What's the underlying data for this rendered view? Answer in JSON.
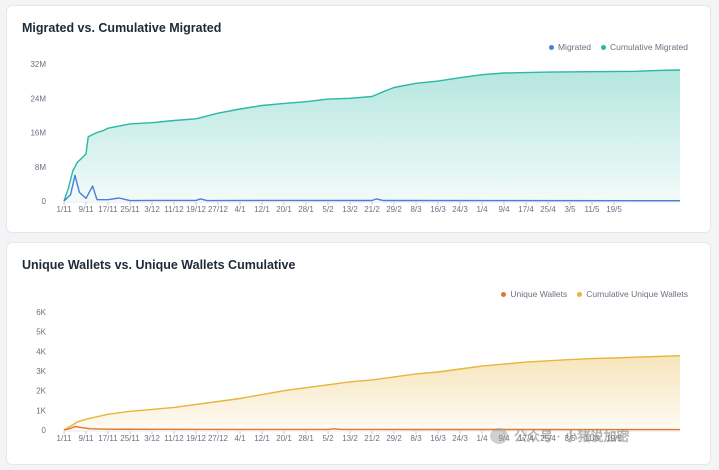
{
  "colors": {
    "migrated": "#4a7fd8",
    "cumulative_migrated": "#2bb8a4",
    "unique_wallets": "#e0772c",
    "cumulative_unique": "#e7b53c"
  },
  "watermark": {
    "icon": "wechat-icon",
    "text": "公众号 · 小猪说加密"
  },
  "chart_data": [
    {
      "type": "area",
      "title": "Migrated vs. Cumulative Migrated",
      "xlabel": "",
      "ylabel": "",
      "ylim": [
        0,
        32000000
      ],
      "legend_position": "top-right",
      "grid": false,
      "yticks": [
        {
          "value": 0,
          "label": "0"
        },
        {
          "value": 8000000,
          "label": "8M"
        },
        {
          "value": 16000000,
          "label": "16M"
        },
        {
          "value": 24000000,
          "label": "24M"
        },
        {
          "value": 32000000,
          "label": "32M"
        }
      ],
      "categories": [
        "1/11",
        "9/11",
        "17/11",
        "25/11",
        "3/12",
        "11/12",
        "19/12",
        "27/12",
        "4/1",
        "12/1",
        "20/1",
        "28/1",
        "5/2",
        "13/2",
        "21/2",
        "29/2",
        "8/3",
        "16/3",
        "24/3",
        "1/4",
        "9/4",
        "17/4",
        "25/4",
        "3/5",
        "11/5",
        "19/5"
      ],
      "x_max": 28,
      "series": [
        {
          "name": "Migrated",
          "color_key": "migrated",
          "fill": false,
          "points": [
            [
              0,
              0
            ],
            [
              0.3,
              1500000
            ],
            [
              0.5,
              6000000
            ],
            [
              0.7,
              2000000
            ],
            [
              1,
              600000
            ],
            [
              1.3,
              3500000
            ],
            [
              1.5,
              300000
            ],
            [
              2,
              300000
            ],
            [
              2.5,
              700000
            ],
            [
              3,
              100000
            ],
            [
              4,
              150000
            ],
            [
              6,
              150000
            ],
            [
              6.2,
              500000
            ],
            [
              6.5,
              100000
            ],
            [
              10,
              150000
            ],
            [
              14,
              120000
            ],
            [
              14.2,
              500000
            ],
            [
              14.5,
              120000
            ],
            [
              20,
              100000
            ],
            [
              28,
              80000
            ]
          ]
        },
        {
          "name": "Cumulative Migrated",
          "color_key": "cumulative_migrated",
          "fill": true,
          "points": [
            [
              0,
              0
            ],
            [
              0.2,
              3000000
            ],
            [
              0.4,
              7000000
            ],
            [
              0.6,
              9000000
            ],
            [
              0.8,
              10000000
            ],
            [
              1,
              11000000
            ],
            [
              1.1,
              15000000
            ],
            [
              1.5,
              16000000
            ],
            [
              1.8,
              16500000
            ],
            [
              2,
              17000000
            ],
            [
              2.5,
              17500000
            ],
            [
              3,
              18000000
            ],
            [
              4,
              18300000
            ],
            [
              5,
              18800000
            ],
            [
              6,
              19200000
            ],
            [
              7,
              20500000
            ],
            [
              8,
              21500000
            ],
            [
              9,
              22300000
            ],
            [
              10,
              22800000
            ],
            [
              11,
              23200000
            ],
            [
              12,
              23800000
            ],
            [
              13,
              24000000
            ],
            [
              14,
              24400000
            ],
            [
              14.5,
              25500000
            ],
            [
              15,
              26500000
            ],
            [
              16,
              27500000
            ],
            [
              17,
              28000000
            ],
            [
              18,
              28800000
            ],
            [
              19,
              29500000
            ],
            [
              20,
              29900000
            ],
            [
              22,
              30100000
            ],
            [
              24,
              30200000
            ],
            [
              26,
              30300000
            ],
            [
              27,
              30500000
            ],
            [
              28,
              30600000
            ]
          ]
        }
      ]
    },
    {
      "type": "area",
      "title": "Unique Wallets vs. Unique Wallets Cumulative",
      "xlabel": "",
      "ylabel": "",
      "ylim": [
        0,
        6000
      ],
      "legend_position": "top-right",
      "grid": false,
      "yticks": [
        {
          "value": 0,
          "label": "0"
        },
        {
          "value": 1000,
          "label": "1K"
        },
        {
          "value": 2000,
          "label": "2K"
        },
        {
          "value": 3000,
          "label": "3K"
        },
        {
          "value": 4000,
          "label": "4K"
        },
        {
          "value": 5000,
          "label": "5K"
        },
        {
          "value": 6000,
          "label": "6K"
        }
      ],
      "categories": [
        "1/11",
        "9/11",
        "17/11",
        "25/11",
        "3/12",
        "11/12",
        "19/12",
        "27/12",
        "4/1",
        "12/1",
        "20/1",
        "28/1",
        "5/2",
        "13/2",
        "21/2",
        "29/2",
        "8/3",
        "16/3",
        "24/3",
        "1/4",
        "9/4",
        "17/4",
        "25/4",
        "3/5",
        "11/5",
        "19/5"
      ],
      "x_max": 28,
      "series": [
        {
          "name": "Unique Wallets",
          "color_key": "unique_wallets",
          "fill": false,
          "points": [
            [
              0,
              0
            ],
            [
              0.3,
              80
            ],
            [
              0.5,
              180
            ],
            [
              0.8,
              120
            ],
            [
              1.2,
              60
            ],
            [
              2,
              40
            ],
            [
              4,
              35
            ],
            [
              8,
              30
            ],
            [
              10,
              30
            ],
            [
              12,
              30
            ],
            [
              12.3,
              60
            ],
            [
              12.6,
              30
            ],
            [
              16,
              25
            ],
            [
              20,
              25
            ],
            [
              24,
              22
            ],
            [
              28,
              20
            ]
          ]
        },
        {
          "name": "Cumulative Unique Wallets",
          "color_key": "cumulative_unique",
          "fill": true,
          "points": [
            [
              0,
              0
            ],
            [
              0.3,
              200
            ],
            [
              0.6,
              400
            ],
            [
              1,
              550
            ],
            [
              2,
              800
            ],
            [
              3,
              950
            ],
            [
              4,
              1050
            ],
            [
              5,
              1150
            ],
            [
              6,
              1300
            ],
            [
              7,
              1450
            ],
            [
              8,
              1600
            ],
            [
              9,
              1800
            ],
            [
              10,
              2000
            ],
            [
              11,
              2150
            ],
            [
              12,
              2300
            ],
            [
              13,
              2450
            ],
            [
              14,
              2550
            ],
            [
              15,
              2700
            ],
            [
              16,
              2850
            ],
            [
              17,
              2950
            ],
            [
              18,
              3100
            ],
            [
              19,
              3250
            ],
            [
              20,
              3350
            ],
            [
              21,
              3450
            ],
            [
              22,
              3520
            ],
            [
              23,
              3580
            ],
            [
              24,
              3630
            ],
            [
              25,
              3660
            ],
            [
              26,
              3700
            ],
            [
              27,
              3740
            ],
            [
              28,
              3780
            ]
          ]
        }
      ]
    }
  ]
}
